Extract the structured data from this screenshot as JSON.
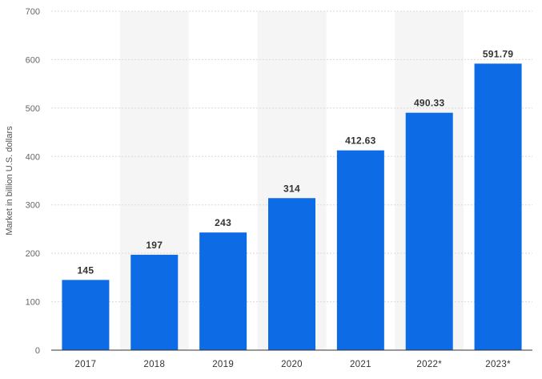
{
  "chart_data": {
    "type": "bar",
    "categories": [
      "2017",
      "2018",
      "2019",
      "2020",
      "2021",
      "2022*",
      "2023*"
    ],
    "values": [
      145,
      197,
      243,
      314,
      412.63,
      490.33,
      591.79
    ],
    "value_labels": [
      "145",
      "197",
      "243",
      "314",
      "412.63",
      "490.33",
      "591.79"
    ],
    "title": "",
    "xlabel": "",
    "ylabel": "Market in billion U.S. dollars",
    "ylim": [
      0,
      700
    ],
    "yticks": [
      0,
      100,
      200,
      300,
      400,
      500,
      600,
      700
    ],
    "grid": true,
    "legend": "none",
    "colors": {
      "bar": "#0d6be6",
      "band": "#f5f5f5",
      "grid": "#d9d9d9",
      "axis": "#333333"
    }
  }
}
